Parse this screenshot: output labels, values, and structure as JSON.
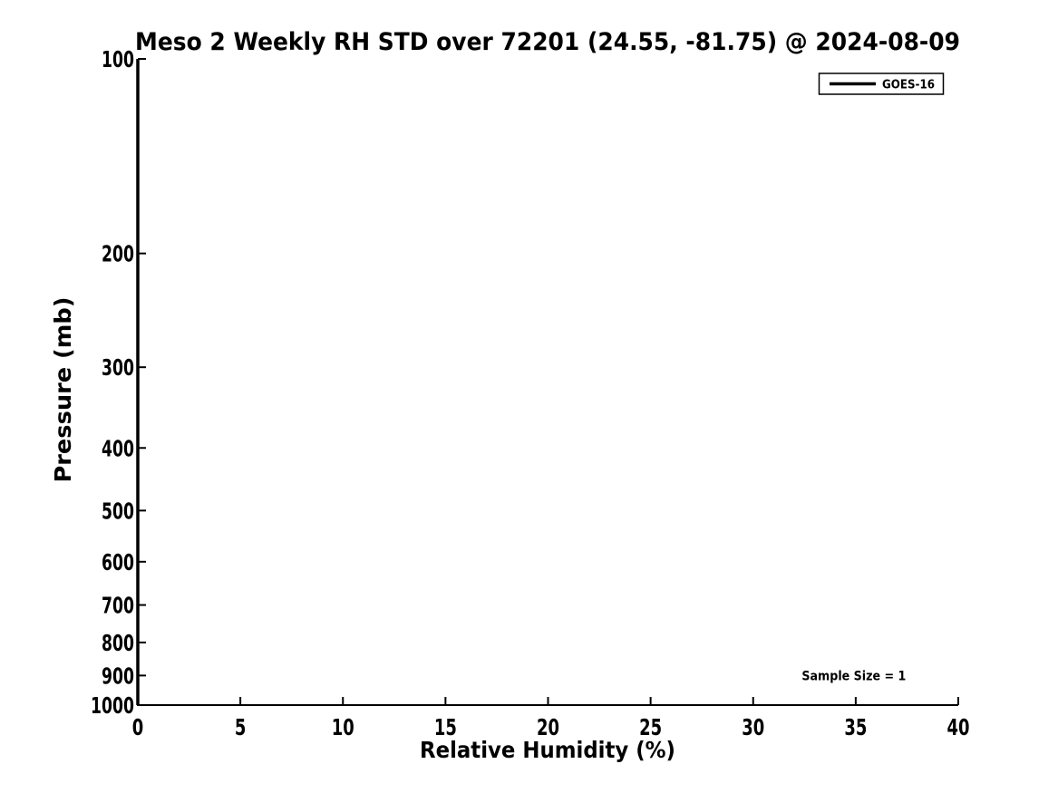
{
  "chart_data": {
    "type": "line",
    "title": "Meso 2 Weekly RH STD over 72201 (24.55, -81.75) @ 2024-08-09",
    "xlabel": "Relative Humidity (%)",
    "ylabel": "Pressure (mb)",
    "xlim": [
      0,
      40
    ],
    "ylim": [
      100,
      1000
    ],
    "yscale": "log",
    "y_inverted": true,
    "grid": false,
    "tick_direction": "in",
    "x_ticks": [
      0,
      5,
      10,
      15,
      20,
      25,
      30,
      35,
      40
    ],
    "y_ticks": [
      100,
      200,
      300,
      400,
      500,
      600,
      700,
      800,
      900,
      1000
    ],
    "series": [
      {
        "name": "GOES-16",
        "color": "#000000",
        "line_width": 3.5,
        "x": [
          0,
          0,
          0,
          0,
          0,
          0,
          0,
          0,
          0,
          0
        ],
        "y": [
          100,
          200,
          300,
          400,
          500,
          600,
          700,
          800,
          900,
          1000
        ]
      }
    ],
    "legend": {
      "position": "top-right",
      "entries": [
        {
          "label": "GOES-16",
          "color": "#000000"
        }
      ]
    },
    "annotations": [
      {
        "text": "Sample Size = 1",
        "x": 35,
        "y": 900
      }
    ],
    "colors": {
      "foreground": "#000000",
      "background": "#ffffff"
    }
  }
}
